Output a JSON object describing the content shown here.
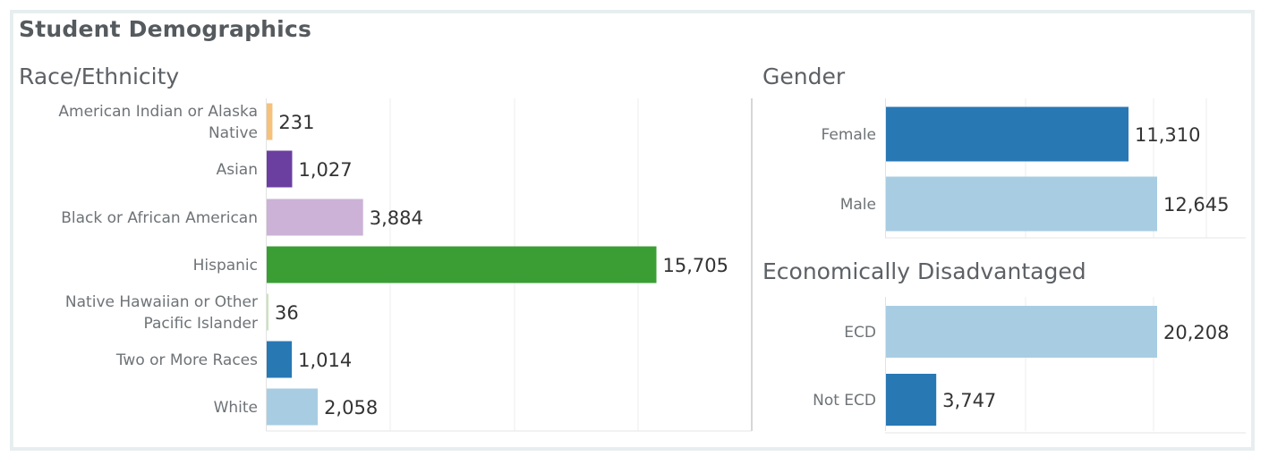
{
  "header": {
    "title": "Student Demographics"
  },
  "chart_data": [
    {
      "type": "bar",
      "orientation": "horizontal",
      "title": "Race/Ethnicity",
      "categories": [
        "American Indian or Alaska Native",
        "Asian",
        "Black or African American",
        "Hispanic",
        "Native Hawaiian or Other Pacific Islander",
        "Two or More Races",
        "White"
      ],
      "category_lines": [
        [
          "American Indian or Alaska",
          "Native"
        ],
        [
          "Asian"
        ],
        [
          "Black or African American"
        ],
        [
          "Hispanic"
        ],
        [
          "Native Hawaiian or Other",
          "Pacific Islander"
        ],
        [
          "Two or More Races"
        ],
        [
          "White"
        ]
      ],
      "values": [
        231,
        1027,
        3884,
        15705,
        36,
        1014,
        2058
      ],
      "value_labels": [
        "231",
        "1,027",
        "3,884",
        "15,705",
        "36",
        "1,014",
        "2,058"
      ],
      "colors": [
        "#f6c17a",
        "#6b3fa0",
        "#cbb2d6",
        "#3a9e35",
        "#c8e6b5",
        "#2878b4",
        "#a8cde2"
      ],
      "xlim": [
        0,
        20000
      ],
      "grid": true
    },
    {
      "type": "bar",
      "orientation": "horizontal",
      "title": "Gender",
      "categories": [
        "Female",
        "Male"
      ],
      "values": [
        11310,
        12645
      ],
      "value_labels": [
        "11,310",
        "12,645"
      ],
      "colors": [
        "#2878b4",
        "#a8cde2"
      ],
      "xlim": [
        0,
        17500
      ],
      "grid": true
    },
    {
      "type": "bar",
      "orientation": "horizontal",
      "title": "Economically Disadvantaged",
      "categories": [
        "ECD",
        "Not ECD"
      ],
      "values": [
        20208,
        3747
      ],
      "value_labels": [
        "20,208",
        "3,747"
      ],
      "colors": [
        "#a8cde2",
        "#2878b4"
      ],
      "xlim": [
        0,
        27500
      ],
      "grid": true
    }
  ]
}
